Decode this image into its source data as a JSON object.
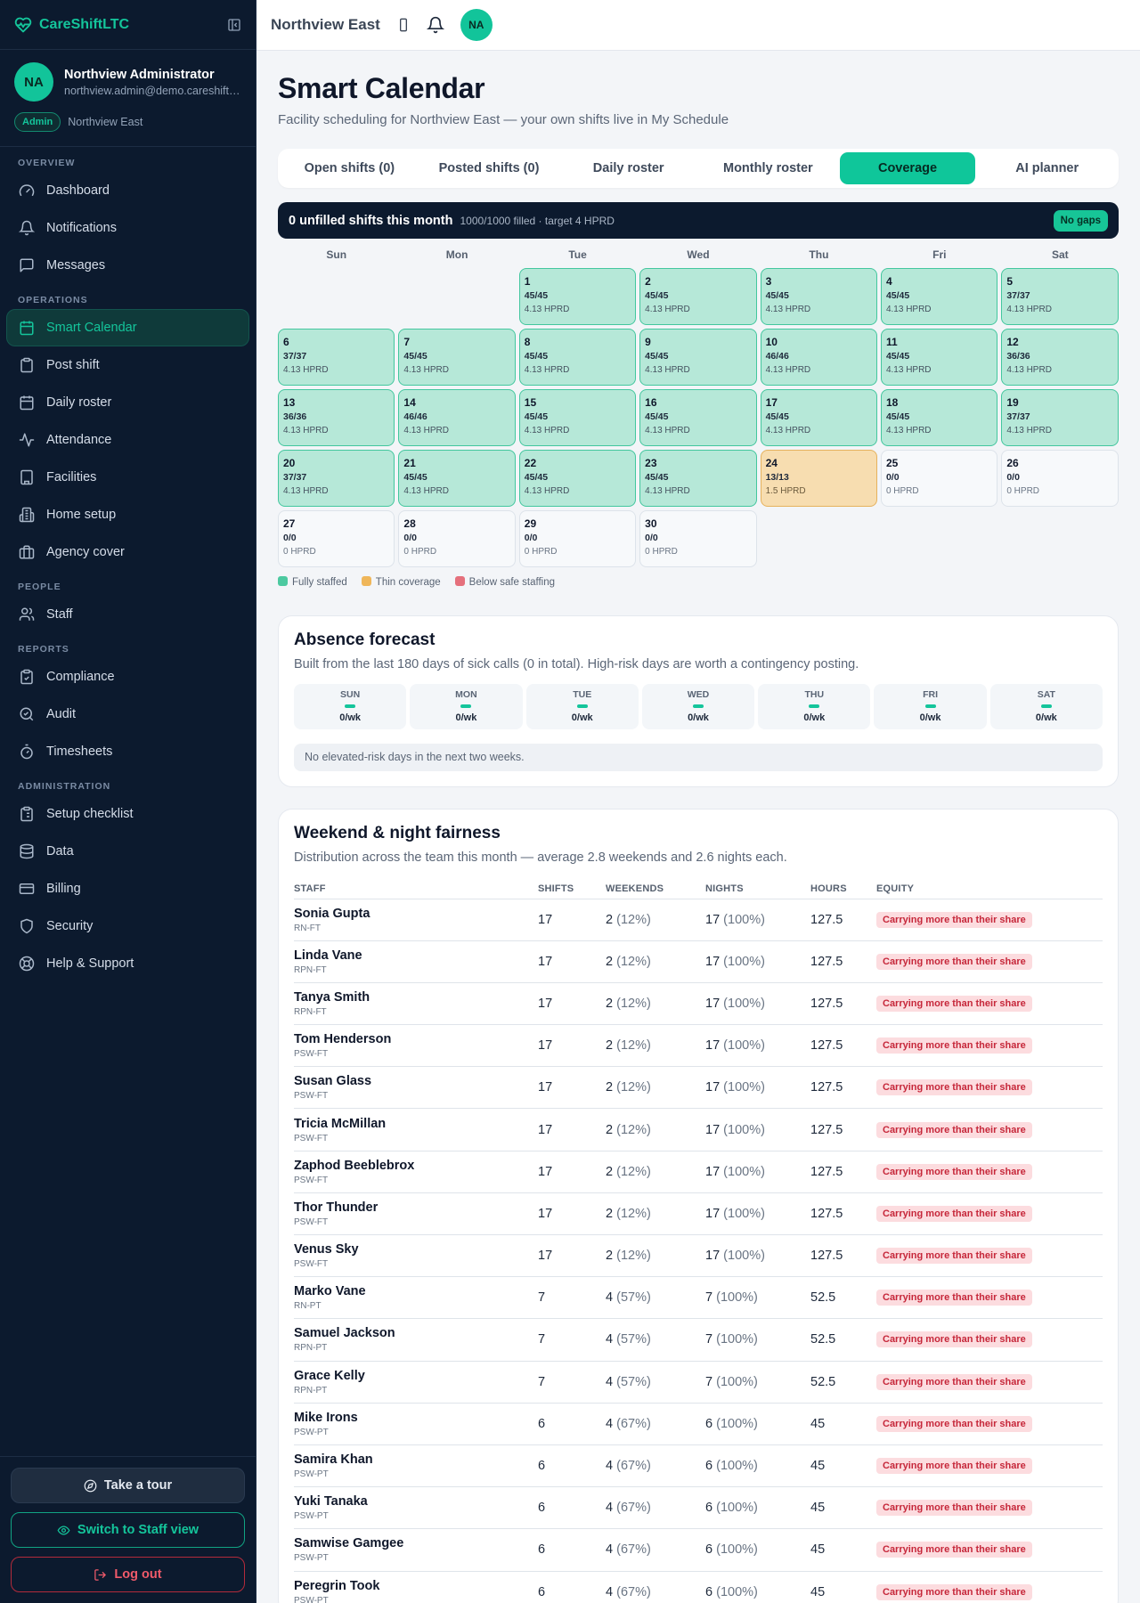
{
  "app": {
    "name": "CareShiftLTC"
  },
  "user": {
    "initials": "NA",
    "name": "Northview Administrator",
    "email": "northview.admin@demo.careshiftltc.com",
    "role": "Admin",
    "facility": "Northview East"
  },
  "nav": {
    "overview_label": "OVERVIEW",
    "overview": [
      {
        "label": "Dashboard"
      },
      {
        "label": "Notifications"
      },
      {
        "label": "Messages"
      }
    ],
    "operations_label": "OPERATIONS",
    "operations": [
      {
        "label": "Smart Calendar"
      },
      {
        "label": "Post shift"
      },
      {
        "label": "Daily roster"
      },
      {
        "label": "Attendance"
      },
      {
        "label": "Facilities"
      },
      {
        "label": "Home setup"
      },
      {
        "label": "Agency cover"
      }
    ],
    "people_label": "PEOPLE",
    "people": [
      {
        "label": "Staff"
      }
    ],
    "reports_label": "REPORTS",
    "reports": [
      {
        "label": "Compliance"
      },
      {
        "label": "Audit"
      },
      {
        "label": "Timesheets"
      }
    ],
    "admin_label": "ADMINISTRATION",
    "admin": [
      {
        "label": "Setup checklist"
      },
      {
        "label": "Data"
      },
      {
        "label": "Billing"
      },
      {
        "label": "Security"
      },
      {
        "label": "Help & Support"
      }
    ]
  },
  "sidebar_footer": {
    "tour": "Take a tour",
    "switch": "Switch to Staff view",
    "logout": "Log out"
  },
  "topbar": {
    "facility": "Northview East",
    "avatar": "NA"
  },
  "page": {
    "title": "Smart Calendar",
    "subtitle": "Facility scheduling for Northview East — your own shifts live in My Schedule"
  },
  "tabs": [
    "Open shifts (0)",
    "Posted shifts (0)",
    "Daily roster",
    "Monthly roster",
    "Coverage",
    "AI planner"
  ],
  "active_tab": 4,
  "banner": {
    "title": "0 unfilled shifts this month",
    "detail": "1000/1000 filled · target 4 HPRD",
    "badge": "No gaps"
  },
  "calendar": {
    "weekdays": [
      "Sun",
      "Mon",
      "Tue",
      "Wed",
      "Thu",
      "Fri",
      "Sat"
    ],
    "leading_blanks": 2,
    "days": [
      {
        "d": "1",
        "f": "45/45",
        "h": "4.13 HPRD",
        "s": "full"
      },
      {
        "d": "2",
        "f": "45/45",
        "h": "4.13 HPRD",
        "s": "full"
      },
      {
        "d": "3",
        "f": "45/45",
        "h": "4.13 HPRD",
        "s": "full"
      },
      {
        "d": "4",
        "f": "45/45",
        "h": "4.13 HPRD",
        "s": "full"
      },
      {
        "d": "5",
        "f": "37/37",
        "h": "4.13 HPRD",
        "s": "full"
      },
      {
        "d": "6",
        "f": "37/37",
        "h": "4.13 HPRD",
        "s": "full"
      },
      {
        "d": "7",
        "f": "45/45",
        "h": "4.13 HPRD",
        "s": "full"
      },
      {
        "d": "8",
        "f": "45/45",
        "h": "4.13 HPRD",
        "s": "full"
      },
      {
        "d": "9",
        "f": "45/45",
        "h": "4.13 HPRD",
        "s": "full"
      },
      {
        "d": "10",
        "f": "46/46",
        "h": "4.13 HPRD",
        "s": "full"
      },
      {
        "d": "11",
        "f": "45/45",
        "h": "4.13 HPRD",
        "s": "full"
      },
      {
        "d": "12",
        "f": "36/36",
        "h": "4.13 HPRD",
        "s": "full"
      },
      {
        "d": "13",
        "f": "36/36",
        "h": "4.13 HPRD",
        "s": "full"
      },
      {
        "d": "14",
        "f": "46/46",
        "h": "4.13 HPRD",
        "s": "full"
      },
      {
        "d": "15",
        "f": "45/45",
        "h": "4.13 HPRD",
        "s": "full"
      },
      {
        "d": "16",
        "f": "45/45",
        "h": "4.13 HPRD",
        "s": "full"
      },
      {
        "d": "17",
        "f": "45/45",
        "h": "4.13 HPRD",
        "s": "full"
      },
      {
        "d": "18",
        "f": "45/45",
        "h": "4.13 HPRD",
        "s": "full"
      },
      {
        "d": "19",
        "f": "37/37",
        "h": "4.13 HPRD",
        "s": "full"
      },
      {
        "d": "20",
        "f": "37/37",
        "h": "4.13 HPRD",
        "s": "full"
      },
      {
        "d": "21",
        "f": "45/45",
        "h": "4.13 HPRD",
        "s": "full"
      },
      {
        "d": "22",
        "f": "45/45",
        "h": "4.13 HPRD",
        "s": "full"
      },
      {
        "d": "23",
        "f": "45/45",
        "h": "4.13 HPRD",
        "s": "full"
      },
      {
        "d": "24",
        "f": "13/13",
        "h": "1.5 HPRD",
        "s": "thin"
      },
      {
        "d": "25",
        "f": "0/0",
        "h": "0 HPRD",
        "s": "none"
      },
      {
        "d": "26",
        "f": "0/0",
        "h": "0 HPRD",
        "s": "none"
      },
      {
        "d": "27",
        "f": "0/0",
        "h": "0 HPRD",
        "s": "none"
      },
      {
        "d": "28",
        "f": "0/0",
        "h": "0 HPRD",
        "s": "none"
      },
      {
        "d": "29",
        "f": "0/0",
        "h": "0 HPRD",
        "s": "none"
      },
      {
        "d": "30",
        "f": "0/0",
        "h": "0 HPRD",
        "s": "none"
      }
    ]
  },
  "legend": [
    {
      "label": "Fully staffed",
      "color": "#4cc9a0"
    },
    {
      "label": "Thin coverage",
      "color": "#efb65a"
    },
    {
      "label": "Below safe staffing",
      "color": "#e5707c"
    }
  ],
  "absence": {
    "title": "Absence forecast",
    "subtitle": "Built from the last 180 days of sick calls (0 in total). High-risk days are worth a contingency posting.",
    "days": [
      {
        "day": "SUN",
        "value": "0/wk"
      },
      {
        "day": "MON",
        "value": "0/wk"
      },
      {
        "day": "TUE",
        "value": "0/wk"
      },
      {
        "day": "WED",
        "value": "0/wk"
      },
      {
        "day": "THU",
        "value": "0/wk"
      },
      {
        "day": "FRI",
        "value": "0/wk"
      },
      {
        "day": "SAT",
        "value": "0/wk"
      }
    ],
    "note": "No elevated-risk days in the next two weeks."
  },
  "fairness": {
    "title": "Weekend & night fairness",
    "subtitle": "Distribution across the team this month — average 2.8 weekends and 2.6 nights each.",
    "columns": [
      "STAFF",
      "SHIFTS",
      "WEEKENDS",
      "NIGHTS",
      "HOURS",
      "EQUITY"
    ],
    "rows": [
      {
        "name": "Sonia Gupta",
        "role": "RN-FT",
        "shifts": "17",
        "weekends": "2",
        "weekends_pct": "(12%)",
        "nights": "17",
        "nights_pct": "(100%)",
        "hours": "127.5",
        "equity": "Carrying more than their share"
      },
      {
        "name": "Linda Vane",
        "role": "RPN-FT",
        "shifts": "17",
        "weekends": "2",
        "weekends_pct": "(12%)",
        "nights": "17",
        "nights_pct": "(100%)",
        "hours": "127.5",
        "equity": "Carrying more than their share"
      },
      {
        "name": "Tanya Smith",
        "role": "RPN-FT",
        "shifts": "17",
        "weekends": "2",
        "weekends_pct": "(12%)",
        "nights": "17",
        "nights_pct": "(100%)",
        "hours": "127.5",
        "equity": "Carrying more than their share"
      },
      {
        "name": "Tom Henderson",
        "role": "PSW-FT",
        "shifts": "17",
        "weekends": "2",
        "weekends_pct": "(12%)",
        "nights": "17",
        "nights_pct": "(100%)",
        "hours": "127.5",
        "equity": "Carrying more than their share"
      },
      {
        "name": "Susan Glass",
        "role": "PSW-FT",
        "shifts": "17",
        "weekends": "2",
        "weekends_pct": "(12%)",
        "nights": "17",
        "nights_pct": "(100%)",
        "hours": "127.5",
        "equity": "Carrying more than their share"
      },
      {
        "name": "Tricia McMillan",
        "role": "PSW-FT",
        "shifts": "17",
        "weekends": "2",
        "weekends_pct": "(12%)",
        "nights": "17",
        "nights_pct": "(100%)",
        "hours": "127.5",
        "equity": "Carrying more than their share"
      },
      {
        "name": "Zaphod Beeblebrox",
        "role": "PSW-FT",
        "shifts": "17",
        "weekends": "2",
        "weekends_pct": "(12%)",
        "nights": "17",
        "nights_pct": "(100%)",
        "hours": "127.5",
        "equity": "Carrying more than their share"
      },
      {
        "name": "Thor Thunder",
        "role": "PSW-FT",
        "shifts": "17",
        "weekends": "2",
        "weekends_pct": "(12%)",
        "nights": "17",
        "nights_pct": "(100%)",
        "hours": "127.5",
        "equity": "Carrying more than their share"
      },
      {
        "name": "Venus Sky",
        "role": "PSW-FT",
        "shifts": "17",
        "weekends": "2",
        "weekends_pct": "(12%)",
        "nights": "17",
        "nights_pct": "(100%)",
        "hours": "127.5",
        "equity": "Carrying more than their share"
      },
      {
        "name": "Marko Vane",
        "role": "RN-PT",
        "shifts": "7",
        "weekends": "4",
        "weekends_pct": "(57%)",
        "nights": "7",
        "nights_pct": "(100%)",
        "hours": "52.5",
        "equity": "Carrying more than their share"
      },
      {
        "name": "Samuel Jackson",
        "role": "RPN-PT",
        "shifts": "7",
        "weekends": "4",
        "weekends_pct": "(57%)",
        "nights": "7",
        "nights_pct": "(100%)",
        "hours": "52.5",
        "equity": "Carrying more than their share"
      },
      {
        "name": "Grace Kelly",
        "role": "RPN-PT",
        "shifts": "7",
        "weekends": "4",
        "weekends_pct": "(57%)",
        "nights": "7",
        "nights_pct": "(100%)",
        "hours": "52.5",
        "equity": "Carrying more than their share"
      },
      {
        "name": "Mike Irons",
        "role": "PSW-PT",
        "shifts": "6",
        "weekends": "4",
        "weekends_pct": "(67%)",
        "nights": "6",
        "nights_pct": "(100%)",
        "hours": "45",
        "equity": "Carrying more than their share"
      },
      {
        "name": "Samira Khan",
        "role": "PSW-PT",
        "shifts": "6",
        "weekends": "4",
        "weekends_pct": "(67%)",
        "nights": "6",
        "nights_pct": "(100%)",
        "hours": "45",
        "equity": "Carrying more than their share"
      },
      {
        "name": "Yuki Tanaka",
        "role": "PSW-PT",
        "shifts": "6",
        "weekends": "4",
        "weekends_pct": "(67%)",
        "nights": "6",
        "nights_pct": "(100%)",
        "hours": "45",
        "equity": "Carrying more than their share"
      },
      {
        "name": "Samwise Gamgee",
        "role": "PSW-PT",
        "shifts": "6",
        "weekends": "4",
        "weekends_pct": "(67%)",
        "nights": "6",
        "nights_pct": "(100%)",
        "hours": "45",
        "equity": "Carrying more than their share"
      },
      {
        "name": "Peregrin Took",
        "role": "PSW-PT",
        "shifts": "6",
        "weekends": "4",
        "weekends_pct": "(67%)",
        "nights": "6",
        "nights_pct": "(100%)",
        "hours": "45",
        "equity": "Carrying more than their share"
      }
    ]
  }
}
